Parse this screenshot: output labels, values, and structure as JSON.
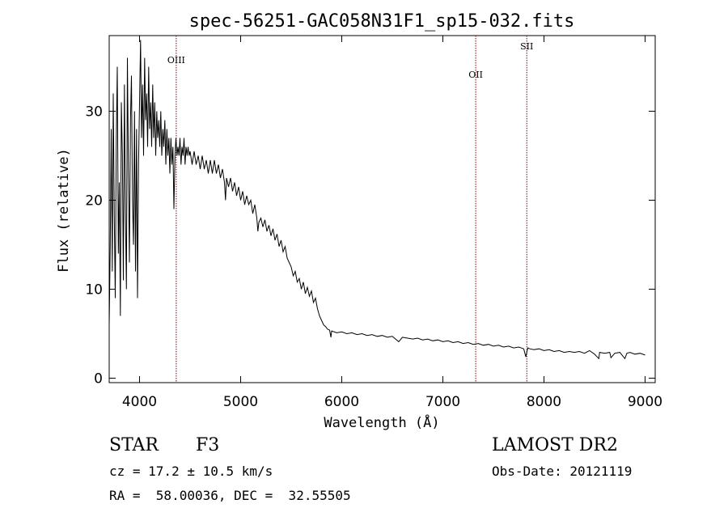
{
  "chart_data": {
    "type": "line",
    "title": "spec-56251-GAC058N31F1_sp15-032.fits",
    "xlabel": "Wavelength (Å)",
    "ylabel": "Flux (relative)",
    "xlim": [
      3700,
      9100
    ],
    "ylim": [
      -0.5,
      38.5
    ],
    "x_ticks": [
      4000,
      5000,
      6000,
      7000,
      8000,
      9000
    ],
    "y_ticks": [
      0,
      10,
      20,
      30
    ],
    "grid": false,
    "series": [
      {
        "points": [
          [
            3700,
            6
          ],
          [
            3710,
            15
          ],
          [
            3720,
            28
          ],
          [
            3730,
            12
          ],
          [
            3740,
            32
          ],
          [
            3750,
            18
          ],
          [
            3760,
            9
          ],
          [
            3770,
            27
          ],
          [
            3780,
            35
          ],
          [
            3790,
            14
          ],
          [
            3800,
            22
          ],
          [
            3810,
            7
          ],
          [
            3820,
            31
          ],
          [
            3830,
            25
          ],
          [
            3840,
            11
          ],
          [
            3850,
            33
          ],
          [
            3860,
            19
          ],
          [
            3870,
            10
          ],
          [
            3880,
            36
          ],
          [
            3890,
            23
          ],
          [
            3900,
            13
          ],
          [
            3910,
            29
          ],
          [
            3920,
            34
          ],
          [
            3930,
            20
          ],
          [
            3940,
            15
          ],
          [
            3950,
            30
          ],
          [
            3960,
            12
          ],
          [
            3970,
            28
          ],
          [
            3980,
            9
          ],
          [
            3990,
            24
          ],
          [
            4000,
            31
          ],
          [
            4010,
            38
          ],
          [
            4020,
            27
          ],
          [
            4030,
            33
          ],
          [
            4040,
            25
          ],
          [
            4050,
            36
          ],
          [
            4060,
            29
          ],
          [
            4070,
            32
          ],
          [
            4080,
            26
          ],
          [
            4090,
            35
          ],
          [
            4100,
            28
          ],
          [
            4110,
            31
          ],
          [
            4120,
            26
          ],
          [
            4130,
            33
          ],
          [
            4140,
            27
          ],
          [
            4150,
            31
          ],
          [
            4160,
            25
          ],
          [
            4170,
            30
          ],
          [
            4180,
            27
          ],
          [
            4190,
            29
          ],
          [
            4200,
            26
          ],
          [
            4210,
            30
          ],
          [
            4220,
            25
          ],
          [
            4230,
            28
          ],
          [
            4240,
            26
          ],
          [
            4250,
            29
          ],
          [
            4260,
            24
          ],
          [
            4270,
            28
          ],
          [
            4280,
            25
          ],
          [
            4290,
            27
          ],
          [
            4300,
            23
          ],
          [
            4310,
            27
          ],
          [
            4320,
            24
          ],
          [
            4330,
            26
          ],
          [
            4340,
            19
          ],
          [
            4350,
            25
          ],
          [
            4360,
            27
          ],
          [
            4370,
            25
          ],
          [
            4380,
            26
          ],
          [
            4390,
            25
          ],
          [
            4400,
            27
          ],
          [
            4410,
            24
          ],
          [
            4420,
            26
          ],
          [
            4430,
            25
          ],
          [
            4440,
            27
          ],
          [
            4450,
            24
          ],
          [
            4460,
            26
          ],
          [
            4470,
            25
          ],
          [
            4480,
            26
          ],
          [
            4490,
            25
          ],
          [
            4500,
            25.5
          ],
          [
            4520,
            24
          ],
          [
            4540,
            25.5
          ],
          [
            4560,
            24
          ],
          [
            4580,
            25
          ],
          [
            4600,
            23.5
          ],
          [
            4620,
            25
          ],
          [
            4640,
            23.5
          ],
          [
            4660,
            24.5
          ],
          [
            4680,
            23
          ],
          [
            4700,
            24.5
          ],
          [
            4720,
            23
          ],
          [
            4740,
            24.5
          ],
          [
            4760,
            23
          ],
          [
            4780,
            24
          ],
          [
            4800,
            22.5
          ],
          [
            4820,
            23.5
          ],
          [
            4840,
            22
          ],
          [
            4850,
            20
          ],
          [
            4860,
            22.5
          ],
          [
            4880,
            21.5
          ],
          [
            4900,
            22.5
          ],
          [
            4920,
            21
          ],
          [
            4940,
            22
          ],
          [
            4960,
            20.5
          ],
          [
            4980,
            21.5
          ],
          [
            5000,
            20
          ],
          [
            5020,
            21
          ],
          [
            5040,
            19.5
          ],
          [
            5060,
            20.5
          ],
          [
            5080,
            19.5
          ],
          [
            5100,
            20
          ],
          [
            5120,
            18.5
          ],
          [
            5140,
            19.5
          ],
          [
            5160,
            18
          ],
          [
            5170,
            16.5
          ],
          [
            5180,
            17.5
          ],
          [
            5200,
            18
          ],
          [
            5220,
            17
          ],
          [
            5240,
            17.8
          ],
          [
            5260,
            16.5
          ],
          [
            5280,
            17.2
          ],
          [
            5300,
            16
          ],
          [
            5320,
            16.8
          ],
          [
            5340,
            15.5
          ],
          [
            5360,
            16.2
          ],
          [
            5380,
            14.8
          ],
          [
            5400,
            15.5
          ],
          [
            5420,
            14.2
          ],
          [
            5440,
            14.8
          ],
          [
            5460,
            13.5
          ],
          [
            5480,
            13
          ],
          [
            5500,
            12.5
          ],
          [
            5520,
            11.5
          ],
          [
            5540,
            12
          ],
          [
            5560,
            10.8
          ],
          [
            5580,
            11.2
          ],
          [
            5600,
            10
          ],
          [
            5620,
            10.8
          ],
          [
            5640,
            9.5
          ],
          [
            5660,
            10.2
          ],
          [
            5680,
            9.2
          ],
          [
            5700,
            9.8
          ],
          [
            5720,
            8.5
          ],
          [
            5740,
            9
          ],
          [
            5760,
            7.8
          ],
          [
            5780,
            7
          ],
          [
            5800,
            6.5
          ],
          [
            5820,
            6
          ],
          [
            5840,
            5.8
          ],
          [
            5860,
            5.5
          ],
          [
            5880,
            5.4
          ],
          [
            5893,
            4.6
          ],
          [
            5900,
            5.3
          ],
          [
            5950,
            5.1
          ],
          [
            6000,
            5.2
          ],
          [
            6050,
            5
          ],
          [
            6100,
            5.1
          ],
          [
            6150,
            4.9
          ],
          [
            6200,
            5
          ],
          [
            6250,
            4.8
          ],
          [
            6300,
            4.9
          ],
          [
            6350,
            4.7
          ],
          [
            6400,
            4.8
          ],
          [
            6450,
            4.6
          ],
          [
            6500,
            4.7
          ],
          [
            6563,
            4.1
          ],
          [
            6600,
            4.6
          ],
          [
            6650,
            4.5
          ],
          [
            6700,
            4.4
          ],
          [
            6750,
            4.5
          ],
          [
            6800,
            4.3
          ],
          [
            6850,
            4.4
          ],
          [
            6900,
            4.2
          ],
          [
            6950,
            4.3
          ],
          [
            7000,
            4.1
          ],
          [
            7050,
            4.2
          ],
          [
            7100,
            4
          ],
          [
            7150,
            4.1
          ],
          [
            7200,
            3.9
          ],
          [
            7250,
            4
          ],
          [
            7300,
            3.8
          ],
          [
            7350,
            3.9
          ],
          [
            7400,
            3.7
          ],
          [
            7450,
            3.8
          ],
          [
            7500,
            3.6
          ],
          [
            7550,
            3.7
          ],
          [
            7600,
            3.5
          ],
          [
            7650,
            3.6
          ],
          [
            7700,
            3.4
          ],
          [
            7750,
            3.5
          ],
          [
            7800,
            3.3
          ],
          [
            7820,
            2.4
          ],
          [
            7840,
            3.4
          ],
          [
            7860,
            3.3
          ],
          [
            7900,
            3.2
          ],
          [
            7950,
            3.3
          ],
          [
            8000,
            3.1
          ],
          [
            8050,
            3.2
          ],
          [
            8100,
            3
          ],
          [
            8150,
            3.1
          ],
          [
            8200,
            2.9
          ],
          [
            8250,
            3
          ],
          [
            8300,
            2.9
          ],
          [
            8350,
            3
          ],
          [
            8400,
            2.8
          ],
          [
            8450,
            3.1
          ],
          [
            8500,
            2.7
          ],
          [
            8542,
            2.2
          ],
          [
            8550,
            2.9
          ],
          [
            8600,
            2.8
          ],
          [
            8650,
            2.9
          ],
          [
            8662,
            2.3
          ],
          [
            8700,
            2.8
          ],
          [
            8750,
            2.9
          ],
          [
            8800,
            2.2
          ],
          [
            8820,
            2.8
          ],
          [
            8850,
            2.9
          ],
          [
            8900,
            2.7
          ],
          [
            8950,
            2.8
          ],
          [
            9000,
            2.6
          ]
        ]
      }
    ],
    "lines": [
      {
        "label": "OIII",
        "x": 4363
      },
      {
        "label": "OII",
        "x": 7325
      },
      {
        "label": "SII",
        "x": 7830
      }
    ]
  },
  "info": {
    "object_type": "STAR",
    "subclass": "F3",
    "survey": "LAMOST DR2",
    "redshift": "cz = 17.2 ± 10.5 km/s",
    "obs_date": "Obs-Date: 20121119",
    "coords": "RA =  58.00036, DEC =  32.55505"
  },
  "colors": {
    "spectrum": "#000000",
    "line_marker": "#8b0000",
    "axes": "#000000"
  }
}
